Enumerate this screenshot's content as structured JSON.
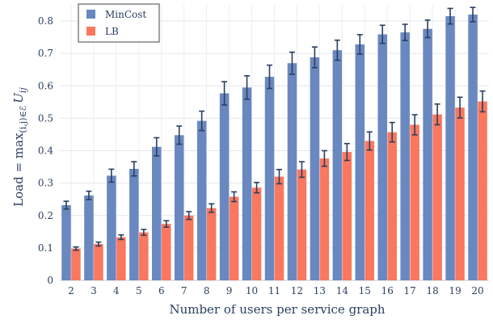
{
  "chart_data": {
    "type": "bar",
    "xlabel": "Number of users per service graph",
    "ylabel": "Load = max_{(i,j)∈ℰ} U_ij",
    "ylabel_parts": {
      "pre": "Load = max",
      "sub": "(i,j)∈ℰ",
      "var": "U",
      "var_sub": "ij"
    },
    "categories": [
      "2",
      "3",
      "4",
      "5",
      "6",
      "7",
      "8",
      "9",
      "10",
      "11",
      "12",
      "13",
      "14",
      "15",
      "16",
      "17",
      "18",
      "19",
      "20"
    ],
    "ylim": [
      0,
      0.85
    ],
    "yticks": [
      0,
      0.1,
      0.2,
      0.3,
      0.4,
      0.5,
      0.6,
      0.7,
      0.8
    ],
    "ytick_labels": [
      "0",
      "0.1",
      "0.2",
      "0.3",
      "0.4",
      "0.5",
      "0.6",
      "0.7",
      "0.8"
    ],
    "grid": true,
    "legend_position": "top-left",
    "series": [
      {
        "name": "MinCost",
        "color": "#6a88c0",
        "values": [
          0.232,
          0.262,
          0.323,
          0.344,
          0.412,
          0.448,
          0.492,
          0.577,
          0.595,
          0.628,
          0.67,
          0.688,
          0.71,
          0.728,
          0.759,
          0.765,
          0.776,
          0.815,
          0.82
        ],
        "errors": [
          0.012,
          0.013,
          0.02,
          0.022,
          0.028,
          0.028,
          0.03,
          0.036,
          0.036,
          0.036,
          0.034,
          0.032,
          0.031,
          0.03,
          0.028,
          0.025,
          0.027,
          0.024,
          0.022
        ]
      },
      {
        "name": "LB",
        "color": "#f9785f",
        "values": [
          0.098,
          0.112,
          0.133,
          0.148,
          0.174,
          0.2,
          0.223,
          0.258,
          0.286,
          0.32,
          0.342,
          0.376,
          0.396,
          0.43,
          0.457,
          0.48,
          0.512,
          0.533,
          0.552
        ],
        "errors": [
          0.005,
          0.006,
          0.007,
          0.009,
          0.01,
          0.012,
          0.013,
          0.015,
          0.016,
          0.022,
          0.024,
          0.024,
          0.026,
          0.028,
          0.03,
          0.031,
          0.032,
          0.032,
          0.032
        ]
      }
    ],
    "error_bar_color": "#2a3f5f"
  }
}
